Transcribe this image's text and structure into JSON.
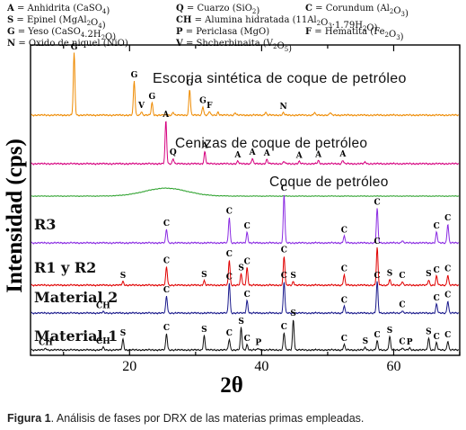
{
  "legend": [
    {
      "code": "A",
      "text": "Anhidrita (CaSO",
      "sub": "4",
      "tail": ")"
    },
    {
      "code": "Q",
      "text": "Cuarzo (SiO",
      "sub": "2",
      "tail": ")"
    },
    {
      "code": "C",
      "text": "Corundum (Al",
      "sub": "2",
      "mid": "O",
      "sub2": "3",
      "tail": ")"
    },
    {
      "code": "S",
      "text": "Epinel (MgAl",
      "sub": "2",
      "mid": "O",
      "sub2": "4",
      "tail": ")"
    },
    {
      "code": "CH",
      "text": "Alumina hidratada (11Al",
      "sub": "2",
      "mid": "O",
      "sub2": "3",
      "tail": "·1.79H",
      "sub3": "2",
      "tail2": "O)"
    },
    {
      "code": "G",
      "text": "Yeso (CaSO",
      "sub": "4",
      "mid": ".2H",
      "sub2": "2",
      "tail": "O)"
    },
    {
      "code": "P",
      "text": "Periclasa (MgO)"
    },
    {
      "code": "F",
      "text": "Hematita (Fe",
      "sub": "2",
      "mid": "O",
      "sub2": "3",
      "tail": ")"
    },
    {
      "code": "N",
      "text": "Oxido de niquel (NiO)"
    },
    {
      "code": "V",
      "text": "Shcherbinaita (V",
      "sub": "2",
      "mid": "O",
      "sub2": "5",
      "tail": ")"
    }
  ],
  "chart_data": {
    "type": "line",
    "title": "",
    "xlabel": "2θ",
    "ylabel": "Intensidad (cps)",
    "xlim": [
      5,
      70
    ],
    "xticks": [
      20,
      40,
      60
    ],
    "grid": false,
    "series": [
      {
        "name": "Escoria sintética de coque de petróleo",
        "color": "#ee8a00",
        "peaks": [
          {
            "x": 11.6,
            "h": 1.0,
            "label": "G"
          },
          {
            "x": 20.7,
            "h": 0.55,
            "label": "G"
          },
          {
            "x": 21.8,
            "h": 0.06,
            "label": "V"
          },
          {
            "x": 23.4,
            "h": 0.2,
            "label": "G"
          },
          {
            "x": 26.6,
            "h": 0.05
          },
          {
            "x": 29.1,
            "h": 0.42,
            "label": "G"
          },
          {
            "x": 31.1,
            "h": 0.14,
            "label": "G"
          },
          {
            "x": 32.1,
            "h": 0.06,
            "label": "F"
          },
          {
            "x": 33.4,
            "h": 0.05
          },
          {
            "x": 36.0,
            "h": 0.04
          },
          {
            "x": 40.6,
            "h": 0.05
          },
          {
            "x": 43.3,
            "h": 0.04,
            "label": "N"
          },
          {
            "x": 48.0,
            "h": 0.04
          },
          {
            "x": 50.4,
            "h": 0.04
          }
        ]
      },
      {
        "name": "Cenizas de coque de petróleo",
        "color": "#d6007f",
        "peaks": [
          {
            "x": 25.5,
            "h": 1.0,
            "label": "A"
          },
          {
            "x": 26.6,
            "h": 0.12,
            "label": "Q"
          },
          {
            "x": 31.4,
            "h": 0.28,
            "label": "A"
          },
          {
            "x": 36.4,
            "h": 0.06,
            "label": "A"
          },
          {
            "x": 38.6,
            "h": 0.12,
            "label": "A"
          },
          {
            "x": 40.8,
            "h": 0.1,
            "label": "A"
          },
          {
            "x": 43.4,
            "h": 0.05
          },
          {
            "x": 45.7,
            "h": 0.05,
            "label": "A"
          },
          {
            "x": 48.6,
            "h": 0.07,
            "label": "A"
          },
          {
            "x": 52.3,
            "h": 0.08,
            "label": "A"
          },
          {
            "x": 55.7,
            "h": 0.04
          }
        ]
      },
      {
        "name": "Coque de petróleo",
        "color": "#2aa02a",
        "hump": {
          "x": 25.5,
          "h": 0.55
        },
        "peaks": []
      },
      {
        "name": "R3",
        "color": "#8a2be2",
        "peaks": [
          {
            "x": 25.6,
            "h": 0.28,
            "label": "C"
          },
          {
            "x": 35.1,
            "h": 0.53,
            "label": "C"
          },
          {
            "x": 37.8,
            "h": 0.22,
            "label": "C"
          },
          {
            "x": 43.4,
            "h": 1.0,
            "label": "C"
          },
          {
            "x": 52.5,
            "h": 0.14,
            "label": "C"
          },
          {
            "x": 57.5,
            "h": 0.71,
            "label": "C"
          },
          {
            "x": 61.3,
            "h": 0.05
          },
          {
            "x": 66.5,
            "h": 0.22,
            "label": "C"
          },
          {
            "x": 68.2,
            "h": 0.39,
            "label": "C"
          }
        ]
      },
      {
        "name": "R1 y R2",
        "color": "#e00000",
        "peaks": [
          {
            "x": 19.0,
            "h": 0.1,
            "label": "S"
          },
          {
            "x": 25.6,
            "h": 0.49,
            "label": "C"
          },
          {
            "x": 31.3,
            "h": 0.12,
            "label": "S"
          },
          {
            "x": 35.1,
            "h": 0.67,
            "label": "C"
          },
          {
            "x": 36.9,
            "h": 0.3,
            "label": "S"
          },
          {
            "x": 37.8,
            "h": 0.47,
            "label": "C"
          },
          {
            "x": 43.4,
            "h": 0.77,
            "label": "C"
          },
          {
            "x": 44.8,
            "h": 0.1,
            "label": "S"
          },
          {
            "x": 52.5,
            "h": 0.27,
            "label": "C"
          },
          {
            "x": 57.5,
            "h": 1.0,
            "label": "C"
          },
          {
            "x": 59.4,
            "h": 0.15,
            "label": "S"
          },
          {
            "x": 61.3,
            "h": 0.1,
            "label": "C"
          },
          {
            "x": 65.3,
            "h": 0.14,
            "label": "S"
          },
          {
            "x": 66.5,
            "h": 0.24,
            "label": "C"
          },
          {
            "x": 68.2,
            "h": 0.27,
            "label": "C"
          }
        ]
      },
      {
        "name": "Material 2",
        "color": "#1a1a8c",
        "peaks": [
          {
            "x": 16.0,
            "h": 0.03,
            "label": "CH"
          },
          {
            "x": 25.6,
            "h": 0.42,
            "label": "C"
          },
          {
            "x": 35.1,
            "h": 0.75,
            "label": "C"
          },
          {
            "x": 37.8,
            "h": 0.31,
            "label": "C"
          },
          {
            "x": 43.4,
            "h": 0.78,
            "label": "C"
          },
          {
            "x": 52.5,
            "h": 0.17,
            "label": "C"
          },
          {
            "x": 57.5,
            "h": 0.78,
            "label": "C"
          },
          {
            "x": 61.3,
            "h": 0.06,
            "label": "C"
          },
          {
            "x": 66.5,
            "h": 0.22,
            "label": "C"
          },
          {
            "x": 68.2,
            "h": 0.3,
            "label": "C"
          }
        ]
      },
      {
        "name": "Material 1",
        "color": "#111111",
        "peaks": [
          {
            "x": 7.3,
            "h": 0.04,
            "label": "CH"
          },
          {
            "x": 16.0,
            "h": 0.07,
            "label": "CH"
          },
          {
            "x": 19.0,
            "h": 0.3,
            "label": "S"
          },
          {
            "x": 25.6,
            "h": 0.45,
            "label": "C"
          },
          {
            "x": 31.3,
            "h": 0.4,
            "label": "S"
          },
          {
            "x": 35.1,
            "h": 0.3,
            "label": "C"
          },
          {
            "x": 36.9,
            "h": 0.62,
            "label": "S"
          },
          {
            "x": 37.8,
            "h": 0.15,
            "label": "C"
          },
          {
            "x": 39.5,
            "h": 0.04,
            "label": "P"
          },
          {
            "x": 43.4,
            "h": 0.48,
            "label": "C"
          },
          {
            "x": 44.8,
            "h": 0.85,
            "label": "S"
          },
          {
            "x": 52.5,
            "h": 0.15,
            "label": "C"
          },
          {
            "x": 55.7,
            "h": 0.07,
            "label": "S"
          },
          {
            "x": 57.5,
            "h": 0.25,
            "label": "C"
          },
          {
            "x": 59.4,
            "h": 0.38,
            "label": "S"
          },
          {
            "x": 61.3,
            "h": 0.06,
            "label": "C"
          },
          {
            "x": 62.4,
            "h": 0.05,
            "label": "P"
          },
          {
            "x": 65.3,
            "h": 0.34,
            "label": "S"
          },
          {
            "x": 66.5,
            "h": 0.2,
            "label": "C"
          },
          {
            "x": 68.2,
            "h": 0.25,
            "label": "C"
          }
        ]
      }
    ]
  },
  "caption": {
    "prefix": "Figura 1",
    "text": ". Análisis de fases por DRX de las materias primas empleadas."
  }
}
